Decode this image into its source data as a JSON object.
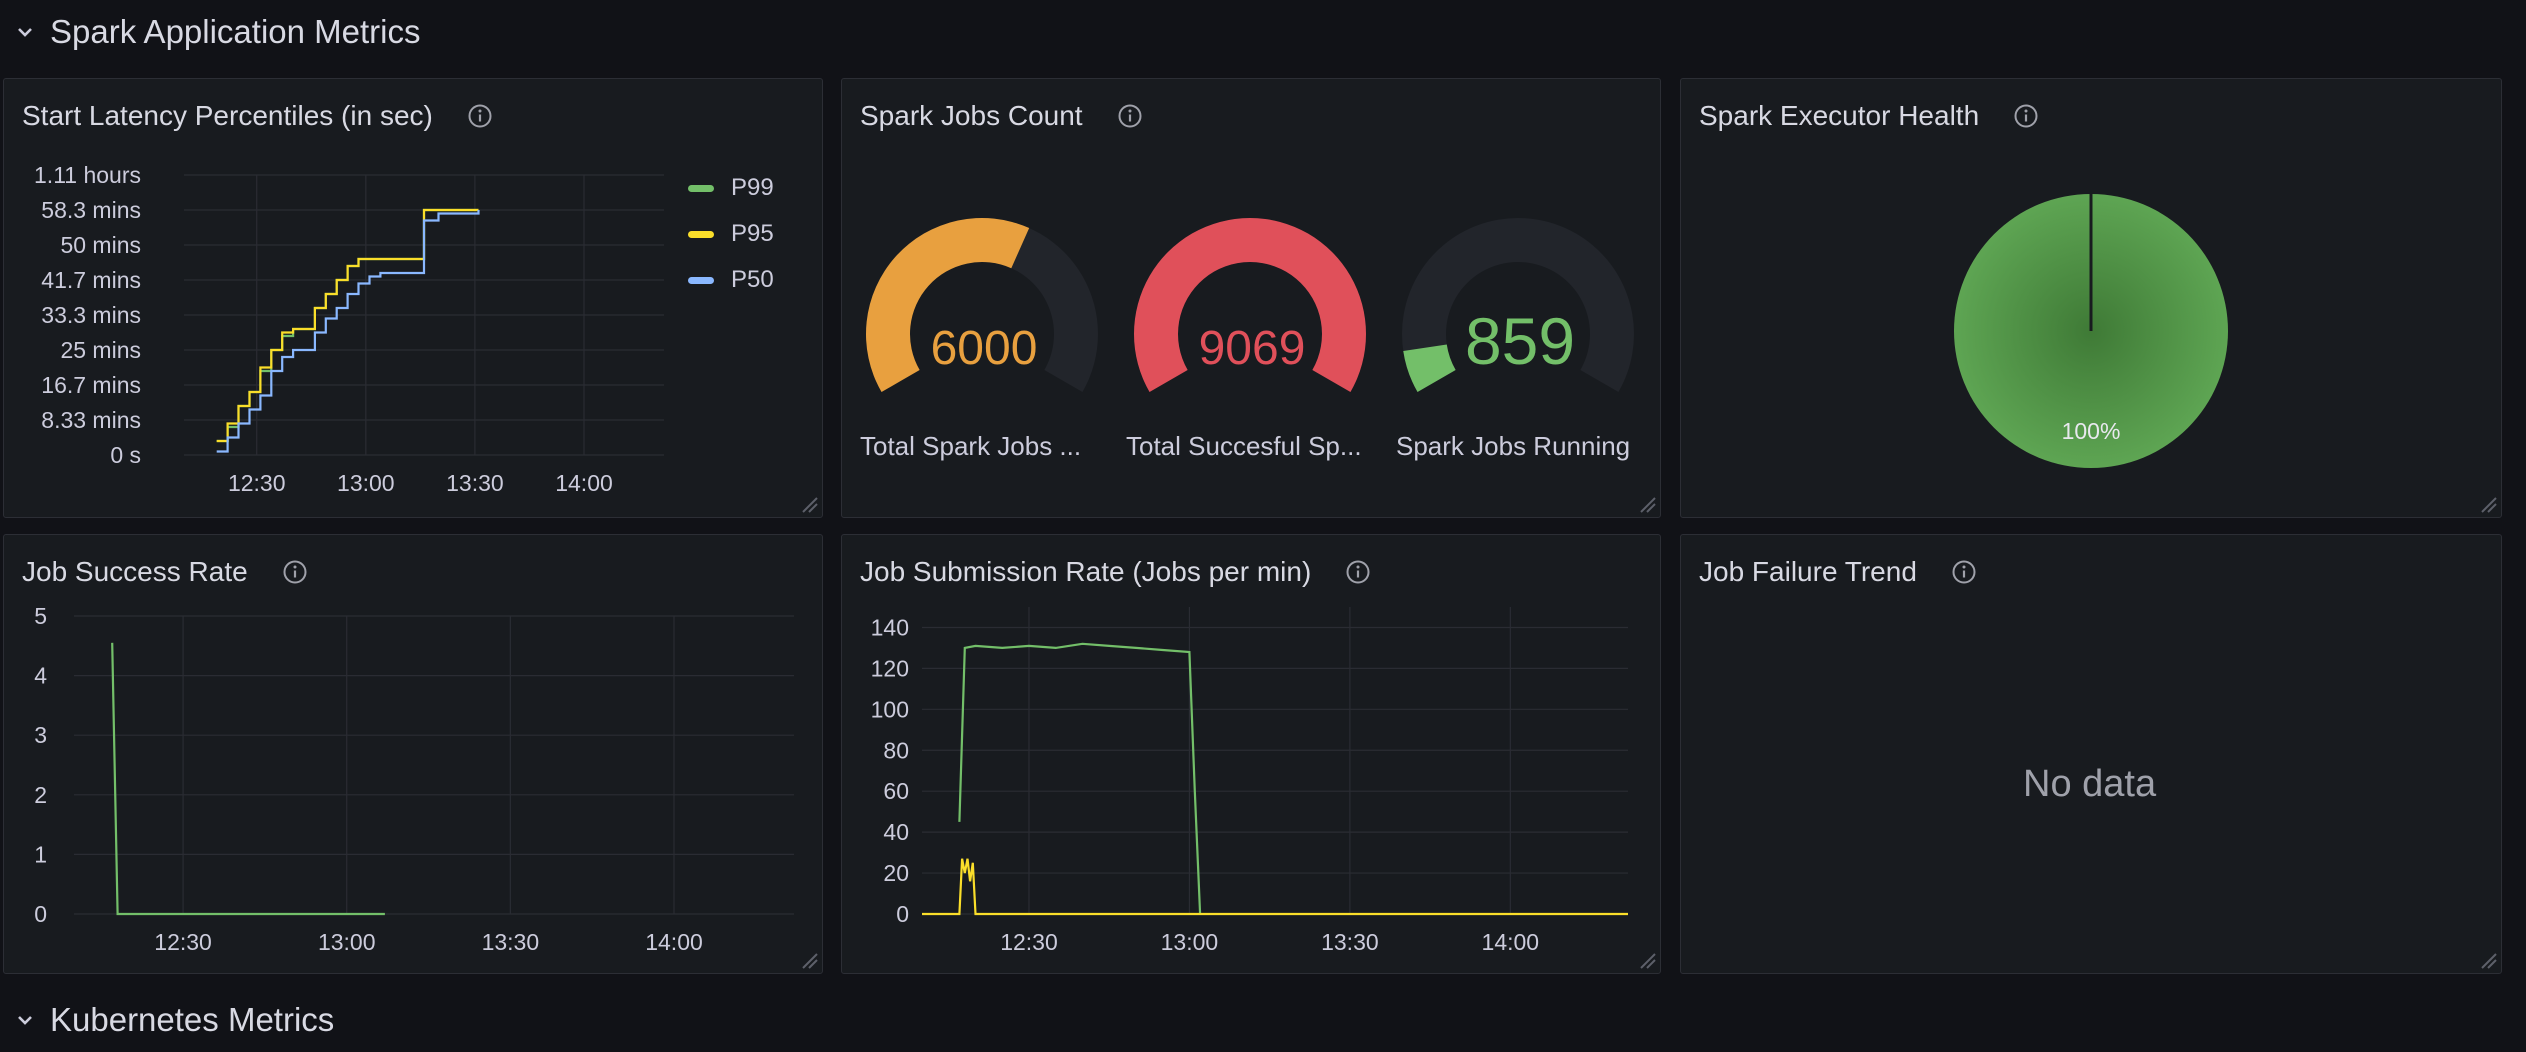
{
  "rows": {
    "spark": {
      "title": "Spark Application Metrics"
    },
    "kubernetes": {
      "title": "Kubernetes Metrics"
    }
  },
  "panels": {
    "latency": {
      "title": "Start Latency Percentiles (in sec)",
      "y_ticks": [
        "1.11 hours",
        "58.3 mins",
        "50 mins",
        "41.7 mins",
        "33.3 mins",
        "25 mins",
        "16.7 mins",
        "8.33 mins",
        "0 s"
      ],
      "x_ticks": [
        "12:30",
        "13:00",
        "13:30",
        "14:00"
      ],
      "legend": [
        {
          "name": "P99",
          "color": "#73bf69"
        },
        {
          "name": "P95",
          "color": "#fade2a"
        },
        {
          "name": "P50",
          "color": "#8ab8ff"
        }
      ]
    },
    "jobs_count": {
      "title": "Spark Jobs Count",
      "gauges": [
        {
          "value": "6000",
          "label": "Total Spark Jobs ...",
          "color": "#e8a03f",
          "fraction": 0.6
        },
        {
          "value": "9069",
          "label": "Total Succesful Sp...",
          "color": "#e0505a",
          "fraction": 1.0
        },
        {
          "value": "859",
          "label": "Spark Jobs Running",
          "color": "#73bf69",
          "fraction": 0.09
        }
      ]
    },
    "executor_health": {
      "title": "Spark Executor Health",
      "slice_label": "100%",
      "slice_color": "#56a64b"
    },
    "success_rate": {
      "title": "Job Success Rate",
      "y_ticks": [
        "5",
        "4",
        "3",
        "2",
        "1",
        "0"
      ],
      "x_ticks": [
        "12:30",
        "13:00",
        "13:30",
        "14:00"
      ]
    },
    "submission_rate": {
      "title": "Job Submission Rate (Jobs per min)",
      "y_ticks": [
        "140",
        "120",
        "100",
        "80",
        "60",
        "40",
        "20",
        "0"
      ],
      "x_ticks": [
        "12:30",
        "13:00",
        "13:30",
        "14:00"
      ]
    },
    "failure_trend": {
      "title": "Job Failure Trend",
      "no_data": "No data"
    }
  },
  "chart_data": [
    {
      "type": "line",
      "title": "Start Latency Percentiles (in sec)",
      "ylim": [
        0,
        4000
      ],
      "x_tick_labels": [
        "12:30",
        "13:00",
        "13:30",
        "14:00"
      ],
      "series": [
        {
          "name": "P99",
          "color": "#73bf69",
          "x": [
            "12:19",
            "12:22",
            "12:25",
            "12:28",
            "12:31",
            "12:34",
            "12:37",
            "12:40",
            "12:43",
            "12:46",
            "12:49",
            "12:52",
            "12:55",
            "12:58",
            "13:01",
            "13:04",
            "13:07",
            "13:16",
            "13:20",
            "13:31"
          ],
          "values": [
            200,
            400,
            700,
            900,
            1200,
            1500,
            1700,
            1800,
            1800,
            2100,
            2300,
            2500,
            2700,
            2800,
            2800,
            2800,
            2800,
            3500,
            3500,
            3500
          ]
        },
        {
          "name": "P95",
          "color": "#fade2a",
          "x": [
            "12:19",
            "12:22",
            "12:25",
            "12:28",
            "12:31",
            "12:34",
            "12:37",
            "12:40",
            "12:43",
            "12:46",
            "12:49",
            "12:52",
            "12:55",
            "12:58",
            "13:01",
            "13:04",
            "13:07",
            "13:16",
            "13:20",
            "13:31"
          ],
          "values": [
            200,
            450,
            700,
            900,
            1250,
            1500,
            1750,
            1800,
            1800,
            2100,
            2300,
            2500,
            2700,
            2800,
            2800,
            2800,
            2800,
            3500,
            3500,
            3500
          ]
        },
        {
          "name": "P50",
          "color": "#8ab8ff",
          "x": [
            "12:19",
            "12:22",
            "12:25",
            "12:28",
            "12:31",
            "12:34",
            "12:37",
            "12:40",
            "12:43",
            "12:46",
            "12:49",
            "12:52",
            "12:55",
            "12:58",
            "13:01",
            "13:04",
            "13:07",
            "13:16",
            "13:20",
            "13:31"
          ],
          "values": [
            50,
            250,
            450,
            650,
            850,
            1200,
            1400,
            1500,
            1500,
            1750,
            1950,
            2100,
            2300,
            2450,
            2550,
            2600,
            2600,
            3350,
            3450,
            3500
          ]
        }
      ]
    },
    {
      "type": "gauge",
      "title": "Spark Jobs Count",
      "categories": [
        "Total Spark Jobs ...",
        "Total Succesful Sp...",
        "Spark Jobs Running"
      ],
      "values": [
        6000,
        9069,
        859
      ]
    },
    {
      "type": "pie",
      "title": "Spark Executor Health",
      "values": [
        100
      ],
      "slice_labels": [
        "100%"
      ]
    },
    {
      "type": "line",
      "title": "Job Success Rate",
      "ylim": [
        0,
        5
      ],
      "x_tick_labels": [
        "12:30",
        "13:00",
        "13:30",
        "14:00"
      ],
      "series": [
        {
          "color": "#73bf69",
          "x": [
            "12:17",
            "12:18",
            "12:30",
            "13:00",
            "13:07"
          ],
          "values": [
            4.55,
            0,
            0,
            0,
            0
          ]
        }
      ]
    },
    {
      "type": "line",
      "title": "Job Submission Rate (Jobs per min)",
      "ylim": [
        0,
        150
      ],
      "x_tick_labels": [
        "12:30",
        "13:00",
        "13:30",
        "14:00"
      ],
      "series": [
        {
          "color": "#73bf69",
          "x": [
            "12:17",
            "12:18",
            "12:20",
            "12:25",
            "12:30",
            "12:35",
            "12:40",
            "12:45",
            "12:50",
            "12:55",
            "13:00",
            "13:01",
            "13:02"
          ],
          "values": [
            45,
            130,
            131,
            130,
            131,
            130,
            132,
            131,
            130,
            129,
            128,
            60,
            0
          ]
        },
        {
          "color": "#fade2a",
          "x": [
            "12:10",
            "12:17",
            "12:17.5",
            "12:18",
            "12:18.5",
            "12:19",
            "12:19.5",
            "12:20",
            "12:21",
            "12:30",
            "13:00",
            "13:30",
            "14:00",
            "14:22"
          ],
          "values": [
            0,
            0,
            27,
            20,
            27,
            16,
            25,
            0,
            0,
            0,
            0,
            0,
            0,
            0
          ]
        }
      ]
    }
  ]
}
